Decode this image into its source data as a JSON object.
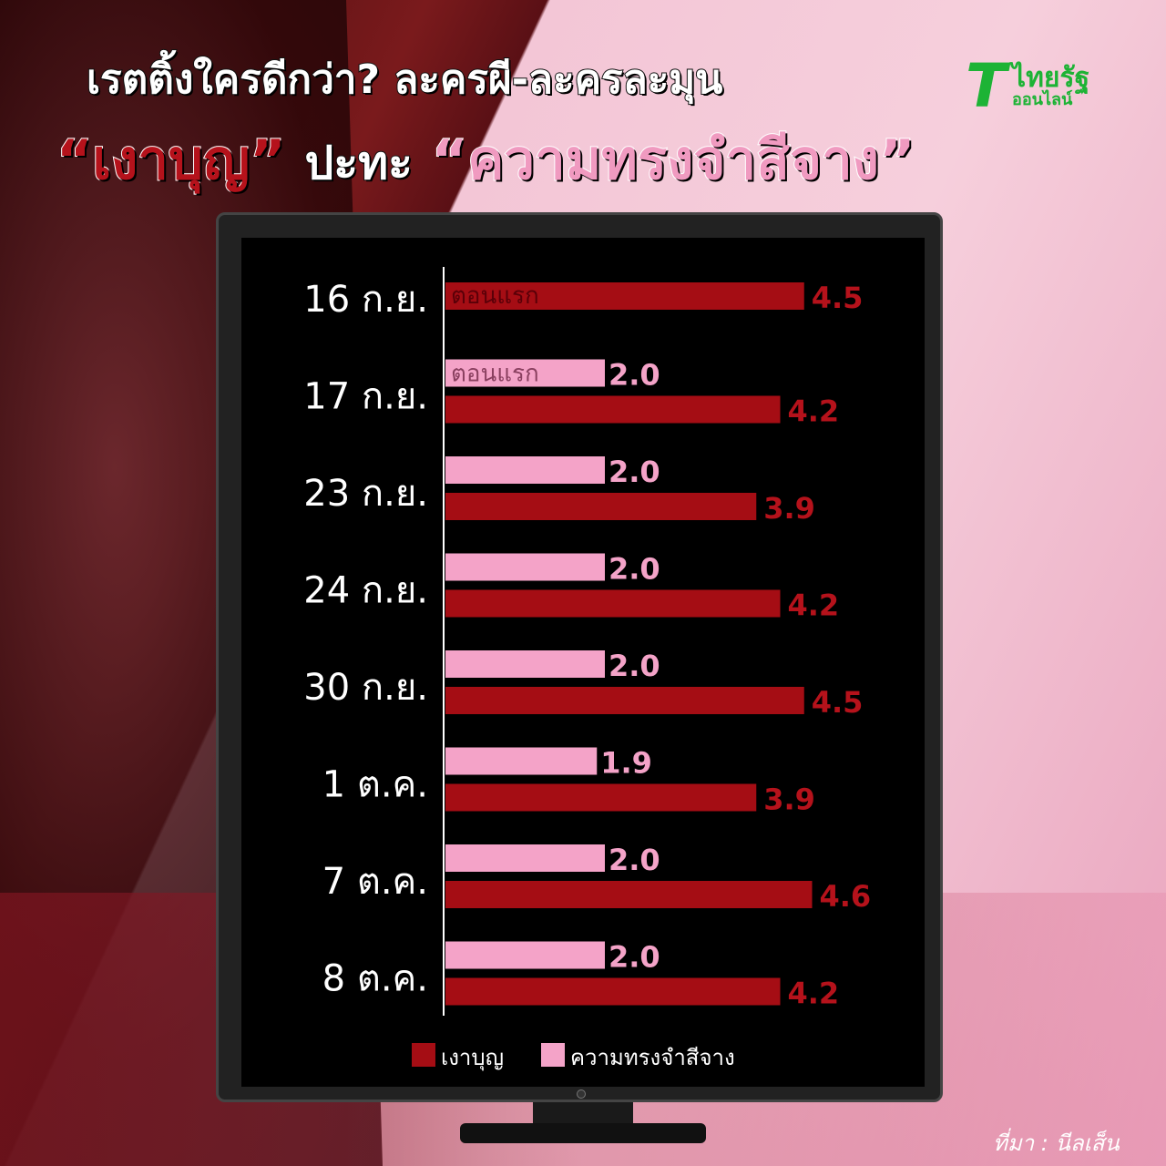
{
  "header": {
    "title_line1": "เรตติ้งใครดีกว่า? ละครผี-ละครละมุน",
    "title_q1": "“เงาบุญ”",
    "title_vs": "ปะทะ",
    "title_q2": "“ความทรงจำสีจาง”"
  },
  "logo": {
    "mark": "T",
    "name": "ไทยรัฐ",
    "sub": "ออนไลน์"
  },
  "source": "ที่มา : นีลเส็น",
  "chart_data": {
    "type": "bar",
    "orientation": "horizontal",
    "categories": [
      "16 ก.ย.",
      "17 ก.ย.",
      "23 ก.ย.",
      "24 ก.ย.",
      "30 ก.ย.",
      "1 ต.ค.",
      "7 ต.ค.",
      "8 ต.ค."
    ],
    "series": [
      {
        "name": "เงาบุญ",
        "color": "#a50d14",
        "label_color": "#b5121b",
        "values": [
          4.5,
          4.2,
          3.9,
          4.2,
          4.5,
          3.9,
          4.6,
          4.2
        ]
      },
      {
        "name": "ความทรงจำสีจาง",
        "color": "#f4a3c8",
        "label_color": "#f4a3c8",
        "values": [
          null,
          2.0,
          2.0,
          2.0,
          2.0,
          1.9,
          2.0,
          2.0
        ]
      }
    ],
    "annotations": [
      {
        "category": "16 ก.ย.",
        "series": "เงาบุญ",
        "text": "ตอนแรก"
      },
      {
        "category": "17 ก.ย.",
        "series": "ความทรงจำสีจาง",
        "text": "ตอนแรก"
      }
    ],
    "legend": "bottom",
    "grid": false
  }
}
